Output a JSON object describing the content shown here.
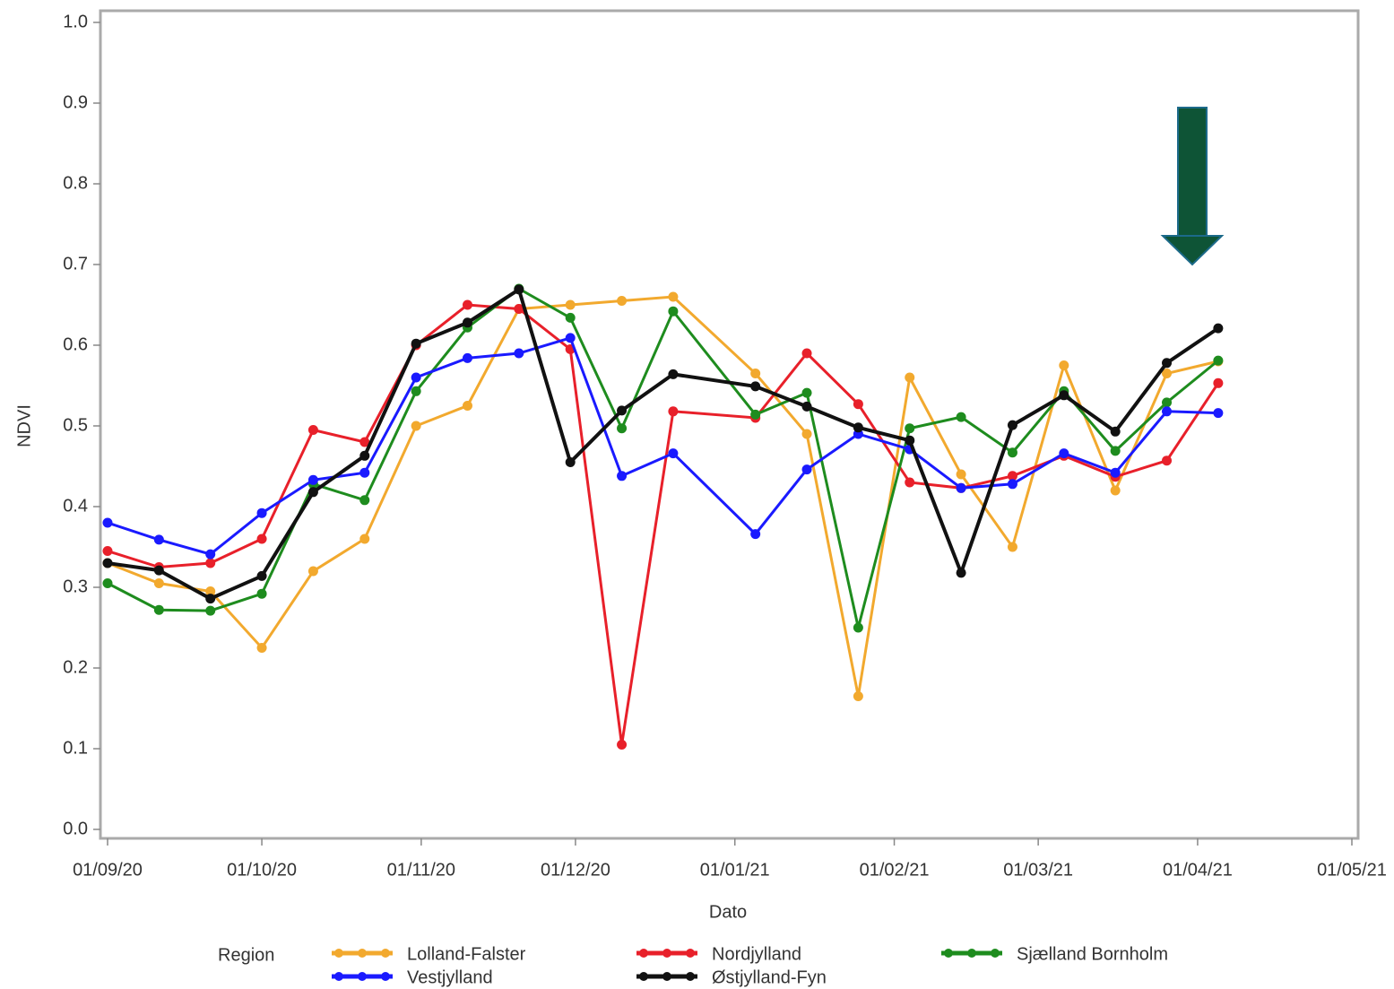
{
  "chart_data": {
    "type": "line",
    "x_label": "Dato",
    "y_label": "NDVI",
    "legend_title": "Region",
    "x": [
      "01/09/20",
      "11/09/20",
      "21/09/20",
      "01/10/20",
      "11/10/20",
      "21/10/20",
      "31/10/20",
      "10/11/20",
      "20/11/20",
      "30/11/20",
      "10/12/20",
      "20/12/20",
      "05/01/21",
      "15/01/21",
      "25/01/21",
      "04/02/21",
      "14/02/21",
      "24/02/21",
      "06/03/21",
      "16/03/21",
      "26/03/21",
      "05/04/21"
    ],
    "xlim": [
      "01/09/20",
      "01/05/21"
    ],
    "xticks": [
      "01/09/20",
      "01/10/20",
      "01/11/20",
      "01/12/20",
      "01/01/21",
      "01/02/21",
      "01/03/21",
      "01/04/21",
      "01/05/21"
    ],
    "ylim": [
      0,
      1
    ],
    "yticks": [
      {
        "value": 0,
        "label": "0.0"
      },
      0.1,
      0.2,
      0.3,
      0.4,
      0.5,
      0.6,
      0.7,
      0.8,
      0.9,
      {
        "value": 1,
        "label": "1.0"
      }
    ],
    "series": [
      {
        "name": "Lolland-Falster",
        "color": "#f2a92e",
        "values": [
          0.33,
          0.305,
          0.295,
          0.225,
          0.32,
          0.36,
          0.5,
          0.525,
          0.645,
          0.65,
          0.655,
          0.66,
          0.565,
          0.49,
          0.165,
          0.56,
          0.44,
          0.35,
          0.575,
          0.42,
          0.565,
          0.58
        ]
      },
      {
        "name": "Nordjylland",
        "color": "#e8202a",
        "values": [
          0.345,
          0.325,
          0.33,
          0.36,
          0.495,
          0.48,
          0.6,
          0.65,
          0.645,
          0.595,
          0.105,
          0.518,
          0.51,
          0.59,
          0.527,
          0.43,
          0.423,
          0.438,
          0.463,
          0.437,
          0.457,
          0.553
        ]
      },
      {
        "name": "Sjælland Bornholm",
        "color": "#1e8c1e",
        "values": [
          0.305,
          0.272,
          0.271,
          0.292,
          0.428,
          0.408,
          0.543,
          0.622,
          0.67,
          0.634,
          0.497,
          0.642,
          0.514,
          0.541,
          0.25,
          0.497,
          0.511,
          0.467,
          0.543,
          0.469,
          0.529,
          0.581
        ]
      },
      {
        "name": "Vestjylland",
        "color": "#1a1aff",
        "values": [
          0.38,
          0.359,
          0.341,
          0.392,
          0.433,
          0.442,
          0.56,
          0.584,
          0.59,
          0.609,
          0.438,
          0.466,
          0.366,
          0.446,
          0.49,
          0.471,
          0.423,
          0.428,
          0.466,
          0.442,
          0.518,
          0.516
        ]
      },
      {
        "name": "Østjylland-Fyn",
        "color": "#111111",
        "values": [
          0.33,
          0.321,
          0.286,
          0.314,
          0.418,
          0.463,
          0.602,
          0.628,
          0.669,
          0.455,
          0.519,
          0.564,
          0.549,
          0.524,
          0.498,
          0.482,
          0.318,
          0.501,
          0.538,
          0.493,
          0.578,
          0.621
        ]
      }
    ]
  }
}
